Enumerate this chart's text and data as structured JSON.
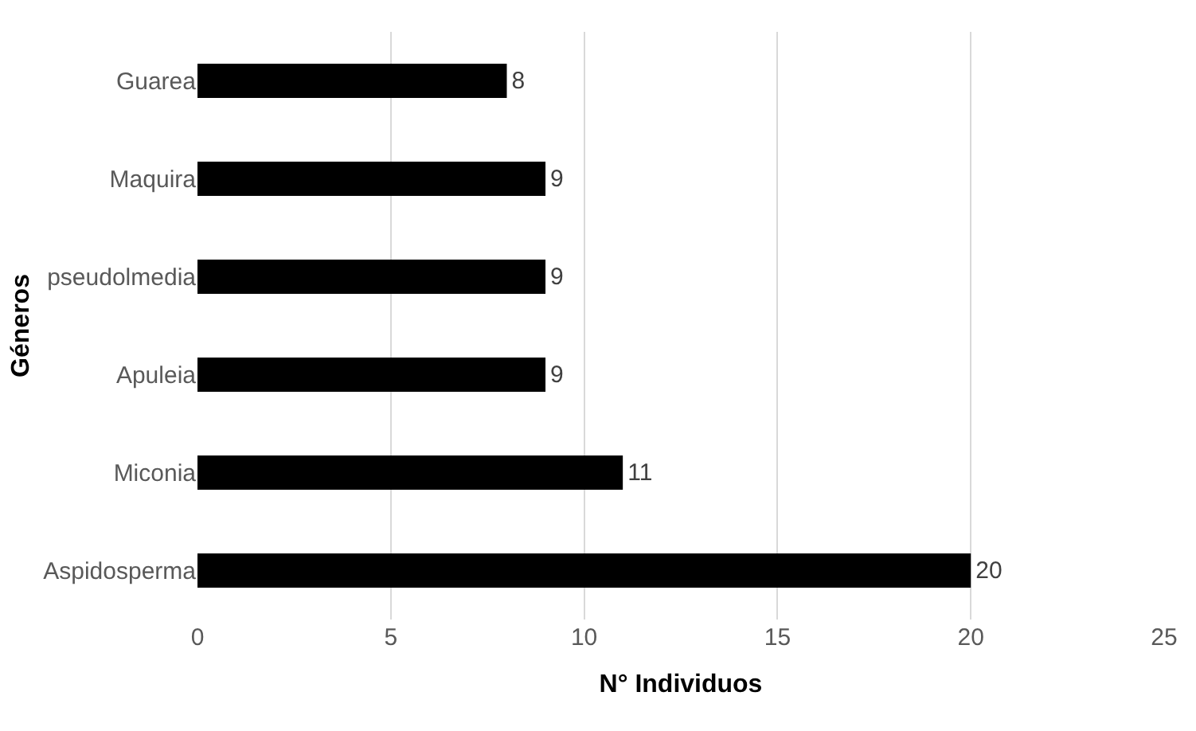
{
  "chart_data": {
    "type": "bar",
    "orientation": "horizontal",
    "xlabel": "N° Individuos",
    "ylabel": "Géneros",
    "categories": [
      "Guarea",
      "Maquira",
      "pseudolmedia",
      "Apuleia",
      "Miconia",
      "Aspidosperma"
    ],
    "values": [
      8,
      9,
      9,
      9,
      11,
      20
    ],
    "color": "#000000",
    "xlim": [
      0,
      25
    ],
    "xticks": [
      0,
      5,
      10,
      15,
      20,
      25
    ],
    "grid": "x",
    "data_labels": true
  }
}
